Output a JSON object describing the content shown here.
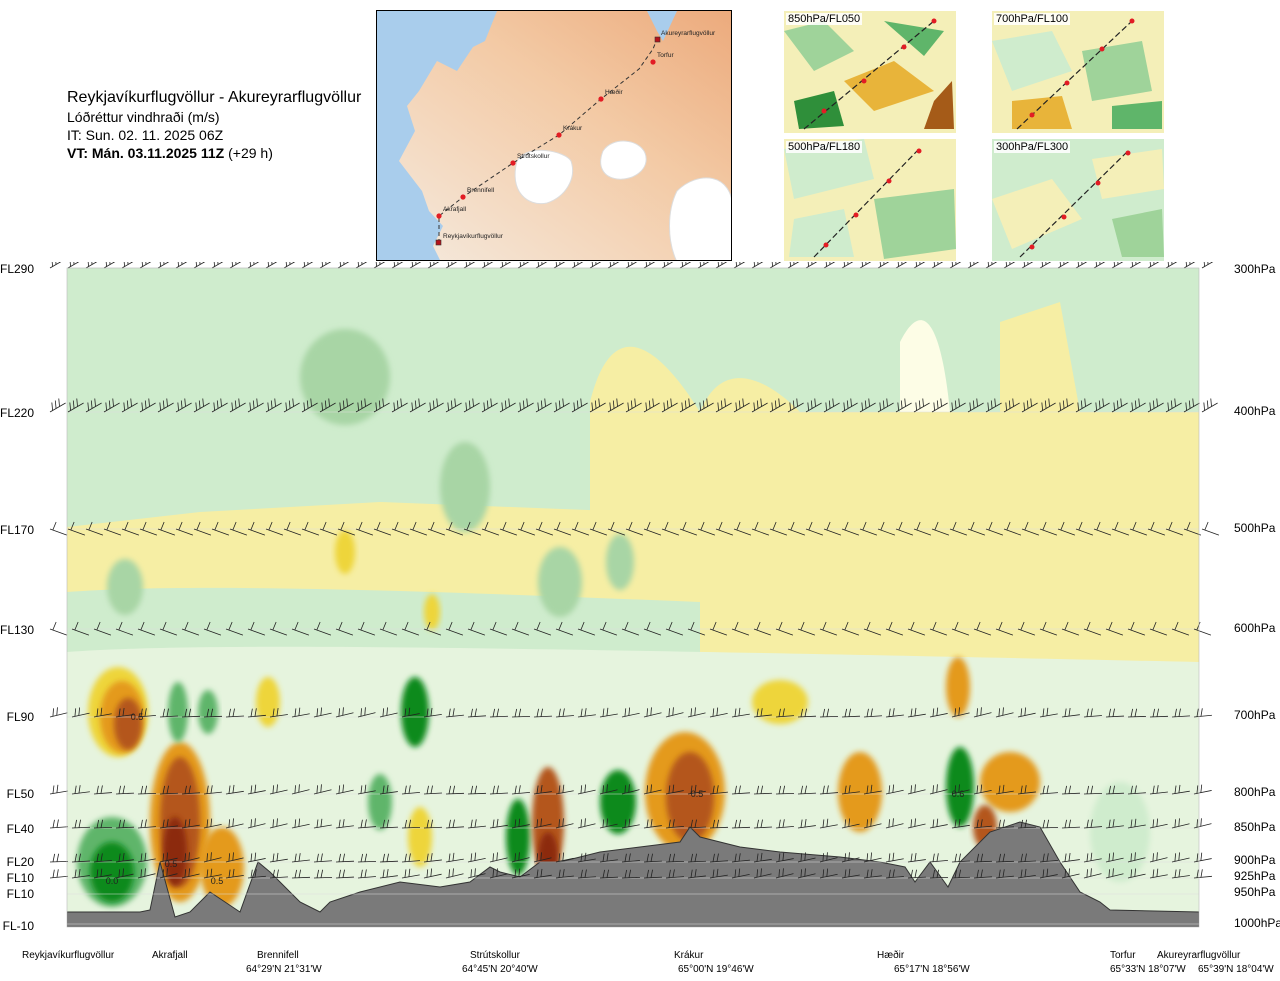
{
  "header": {
    "route_title": "Reykjavíkurflugvöllur - Akureyrarflugvöllur",
    "subtitle": "Lóðréttur vindhraði (m/s)",
    "issue_time": "IT: Sun. 02. 11. 2025 06Z",
    "valid_time": "VT: Mán. 03.11.2025 11Z",
    "lead_time": "(+29 h)"
  },
  "route_map": {
    "waypoints": [
      "Akureyrarflugvöllur",
      "Torfur",
      "Hæðir",
      "Krákur",
      "Strútskollur",
      "Brennifell",
      "Akrafjall",
      "Reykjavíkurflugvöllur"
    ]
  },
  "level_maps": [
    {
      "label": "850hPa/FL050"
    },
    {
      "label": "700hPa/FL100"
    },
    {
      "label": "500hPa/FL180"
    },
    {
      "label": "300hPa/FL300"
    }
  ],
  "chart_data": {
    "type": "heatmap",
    "title": "Lóðréttur vindhraði (m/s)",
    "left_axis_ticks": [
      "FL290",
      "FL220",
      "FL170",
      "FL130",
      "FL90",
      "FL50",
      "FL40",
      "FL20",
      "FL10",
      "FL10",
      "FL-10"
    ],
    "right_axis_ticks": [
      "300hPa",
      "400hPa",
      "500hPa",
      "600hPa",
      "700hPa",
      "800hPa",
      "850hPa",
      "900hPa",
      "925hPa",
      "950hPa",
      "1000hPa"
    ],
    "pressure_levels_hpa": [
      300,
      400,
      500,
      600,
      700,
      800,
      850,
      900,
      925,
      950,
      1000
    ],
    "waypoints": [
      {
        "name": "Reykjavíkurflugvöllur",
        "coord": ""
      },
      {
        "name": "Akrafjall",
        "coord": ""
      },
      {
        "name": "Brennifell",
        "coord": "64°29'N 21°31'W"
      },
      {
        "name": "Strútskollur",
        "coord": "64°45'N 20°40'W"
      },
      {
        "name": "Krákur",
        "coord": "65°00'N 19°46'W"
      },
      {
        "name": "Hæðir",
        "coord": "65°17'N 18°56'W"
      },
      {
        "name": "Torfur",
        "coord": "65°33'N 18°07'W"
      },
      {
        "name": "Akureyrarflugvöllur",
        "coord": "65°39'N 18°04'W"
      }
    ],
    "contour_labels": [
      "0.5",
      "0.0",
      "0.5",
      "0.5",
      "0.5",
      "0.6"
    ],
    "colors": {
      "down_strong": "#0a8a1e",
      "down_mid": "#5fb56a",
      "down_weak": "#a8d5a5",
      "down_faint": "#cfeccd",
      "neutral": "#fdfde6",
      "up_faint": "#f6eea4",
      "up_weak": "#eed53b",
      "up_mid": "#e49a1f",
      "up_strong": "#b4561a",
      "up_max": "#8c2a10",
      "terrain": "#7a7a7a"
    }
  }
}
